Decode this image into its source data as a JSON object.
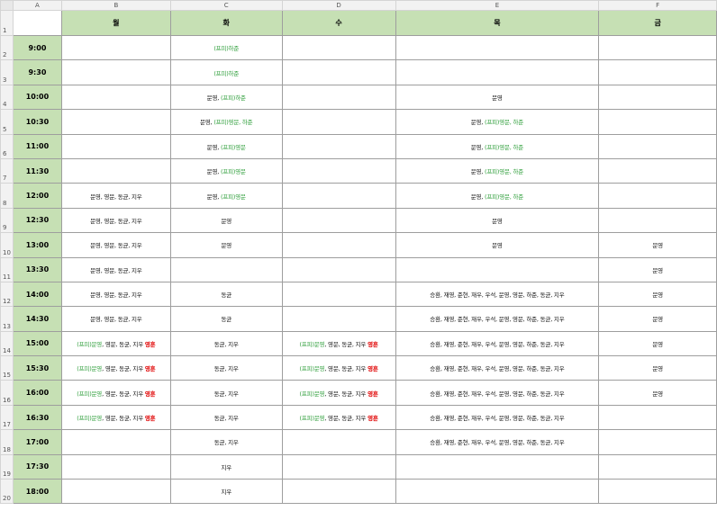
{
  "columns": [
    "A",
    "B",
    "C",
    "D",
    "E",
    "F"
  ],
  "days": [
    "월",
    "화",
    "수",
    "목",
    "금"
  ],
  "colors": {
    "green_text": "#2e9e3a",
    "red_text": "#e00000",
    "header_fill": "#c6e0b4"
  },
  "rows": [
    {
      "num": "2",
      "time": "9:00",
      "cells": [
        [],
        [
          {
            "t": "(프피)하준",
            "c": "g"
          }
        ],
        [],
        [],
        []
      ]
    },
    {
      "num": "3",
      "time": "9:30",
      "cells": [
        [],
        [
          {
            "t": "(프피)하준",
            "c": "g"
          }
        ],
        [],
        [],
        []
      ]
    },
    {
      "num": "4",
      "time": "10:00",
      "cells": [
        [],
        [
          {
            "t": "문영, ",
            "c": "k"
          },
          {
            "t": "(프피)하준",
            "c": "g"
          }
        ],
        [],
        [
          {
            "t": "문영",
            "c": "k"
          }
        ],
        []
      ]
    },
    {
      "num": "5",
      "time": "10:30",
      "cells": [
        [],
        [
          {
            "t": "문영, ",
            "c": "k"
          },
          {
            "t": "(프피)영문, 하준",
            "c": "g"
          }
        ],
        [],
        [
          {
            "t": "문영, ",
            "c": "k"
          },
          {
            "t": "(프피)영문, 하준",
            "c": "g"
          }
        ],
        []
      ]
    },
    {
      "num": "6",
      "time": "11:00",
      "cells": [
        [],
        [
          {
            "t": "문영, ",
            "c": "k"
          },
          {
            "t": "(프피)영문",
            "c": "g"
          }
        ],
        [],
        [
          {
            "t": "문영, ",
            "c": "k"
          },
          {
            "t": "(프피)영문, 하준",
            "c": "g"
          }
        ],
        []
      ]
    },
    {
      "num": "7",
      "time": "11:30",
      "cells": [
        [],
        [
          {
            "t": "문영, ",
            "c": "k"
          },
          {
            "t": "(프피)영문",
            "c": "g"
          }
        ],
        [],
        [
          {
            "t": "문영, ",
            "c": "k"
          },
          {
            "t": "(프피)영문, 하준",
            "c": "g"
          }
        ],
        []
      ]
    },
    {
      "num": "8",
      "time": "12:00",
      "cells": [
        [
          {
            "t": "문영, 영문, 동균, 지우",
            "c": "k"
          }
        ],
        [
          {
            "t": "문영, ",
            "c": "k"
          },
          {
            "t": "(프피)영문",
            "c": "g"
          }
        ],
        [],
        [
          {
            "t": "문영, ",
            "c": "k"
          },
          {
            "t": "(프피)영문, 하준",
            "c": "g"
          }
        ],
        []
      ]
    },
    {
      "num": "9",
      "time": "12:30",
      "cells": [
        [
          {
            "t": "문영, 영문, 동균, 지우",
            "c": "k"
          }
        ],
        [
          {
            "t": "문영",
            "c": "k"
          }
        ],
        [],
        [
          {
            "t": "문영",
            "c": "k"
          }
        ],
        []
      ]
    },
    {
      "num": "10",
      "time": "13:00",
      "cells": [
        [
          {
            "t": "문영, 영문, 동균, 지우",
            "c": "k"
          }
        ],
        [
          {
            "t": "문영",
            "c": "k"
          }
        ],
        [],
        [
          {
            "t": "문영",
            "c": "k"
          }
        ],
        [
          {
            "t": "문영",
            "c": "k"
          }
        ]
      ]
    },
    {
      "num": "11",
      "time": "13:30",
      "cells": [
        [
          {
            "t": "문영, 영문, 동균, 지우",
            "c": "k"
          }
        ],
        [],
        [],
        [],
        [
          {
            "t": "문영",
            "c": "k"
          }
        ]
      ]
    },
    {
      "num": "12",
      "time": "14:00",
      "cells": [
        [
          {
            "t": "문영, 영문, 동균, 지우",
            "c": "k"
          }
        ],
        [
          {
            "t": "동균",
            "c": "k"
          }
        ],
        [],
        [
          {
            "t": "승환, 재영, 준현, 재우, 우석, 문영, 영문, 하준, 동균, 지우",
            "c": "k"
          }
        ],
        [
          {
            "t": "문영",
            "c": "k"
          }
        ]
      ]
    },
    {
      "num": "13",
      "time": "14:30",
      "cells": [
        [
          {
            "t": "문영, 영문, 동균, 지우",
            "c": "k"
          }
        ],
        [
          {
            "t": "동균",
            "c": "k"
          }
        ],
        [],
        [
          {
            "t": "승환, 재영, 준현, 재우, 우석, 문영, 영문, 하준, 동균, 지우",
            "c": "k"
          }
        ],
        [
          {
            "t": "문영",
            "c": "k"
          }
        ]
      ]
    },
    {
      "num": "14",
      "time": "15:00",
      "cells": [
        [
          {
            "t": "(프피)문영",
            "c": "g"
          },
          {
            "t": ", 영문, 동균, 지우 ",
            "c": "k"
          },
          {
            "t": "영훈",
            "c": "r"
          }
        ],
        [
          {
            "t": "동균, 지우",
            "c": "k"
          }
        ],
        [
          {
            "t": "(프피)문영",
            "c": "g"
          },
          {
            "t": ", 영문, 동균, 지우 ",
            "c": "k"
          },
          {
            "t": "영훈",
            "c": "r"
          }
        ],
        [
          {
            "t": "승환, 재영, 준현, 재우, 우석, 문영, 영문, 하준, 동균, 지우",
            "c": "k"
          }
        ],
        [
          {
            "t": "문영",
            "c": "k"
          }
        ]
      ]
    },
    {
      "num": "15",
      "time": "15:30",
      "cells": [
        [
          {
            "t": "(프피)문영",
            "c": "g"
          },
          {
            "t": ", 영문, 동균, 지우 ",
            "c": "k"
          },
          {
            "t": "영훈",
            "c": "r"
          }
        ],
        [
          {
            "t": "동균, 지우",
            "c": "k"
          }
        ],
        [
          {
            "t": "(프피)문영",
            "c": "g"
          },
          {
            "t": ", 영문, 동균, 지우 ",
            "c": "k"
          },
          {
            "t": "영훈",
            "c": "r"
          }
        ],
        [
          {
            "t": "승환, 재영, 준현, 재우, 우석, 문영, 영문, 하준, 동균, 지우",
            "c": "k"
          }
        ],
        [
          {
            "t": "문영",
            "c": "k"
          }
        ]
      ]
    },
    {
      "num": "16",
      "time": "16:00",
      "cells": [
        [
          {
            "t": "(프피)문영",
            "c": "g"
          },
          {
            "t": ", 영문, 동균, 지우 ",
            "c": "k"
          },
          {
            "t": "영훈",
            "c": "r"
          }
        ],
        [
          {
            "t": "동균, 지우",
            "c": "k"
          }
        ],
        [
          {
            "t": "(프피)문영",
            "c": "g"
          },
          {
            "t": ", 영문, 동균, 지우 ",
            "c": "k"
          },
          {
            "t": "영훈",
            "c": "r"
          }
        ],
        [
          {
            "t": "승환, 재영, 준현, 재우, 우석, 문영, 영문, 하준, 동균, 지우",
            "c": "k"
          }
        ],
        [
          {
            "t": "문영",
            "c": "k"
          }
        ]
      ]
    },
    {
      "num": "17",
      "time": "16:30",
      "cells": [
        [
          {
            "t": "(프피)문영",
            "c": "g"
          },
          {
            "t": ", 영문, 동균, 지우 ",
            "c": "k"
          },
          {
            "t": "영훈",
            "c": "r"
          }
        ],
        [
          {
            "t": "동균, 지우",
            "c": "k"
          }
        ],
        [
          {
            "t": "(프피)문영",
            "c": "g"
          },
          {
            "t": ", 영문, 동균, 지우 ",
            "c": "k"
          },
          {
            "t": "영훈",
            "c": "r"
          }
        ],
        [
          {
            "t": "승환, 재영, 준현, 재우, 우석, 문영, 영문, 하준, 동균, 지우",
            "c": "k"
          }
        ],
        []
      ]
    },
    {
      "num": "18",
      "time": "17:00",
      "cells": [
        [],
        [
          {
            "t": "동균, 지우",
            "c": "k"
          }
        ],
        [],
        [
          {
            "t": "승환, 재영, 준현, 재우, 우석, 문영, 영문, 하준, 동균, 지우",
            "c": "k"
          }
        ],
        []
      ]
    },
    {
      "num": "19",
      "time": "17:30",
      "cells": [
        [],
        [
          {
            "t": "지우",
            "c": "k"
          }
        ],
        [],
        [],
        []
      ]
    },
    {
      "num": "20",
      "time": "18:00",
      "cells": [
        [],
        [
          {
            "t": "지우",
            "c": "k"
          }
        ],
        [],
        [],
        []
      ]
    }
  ]
}
